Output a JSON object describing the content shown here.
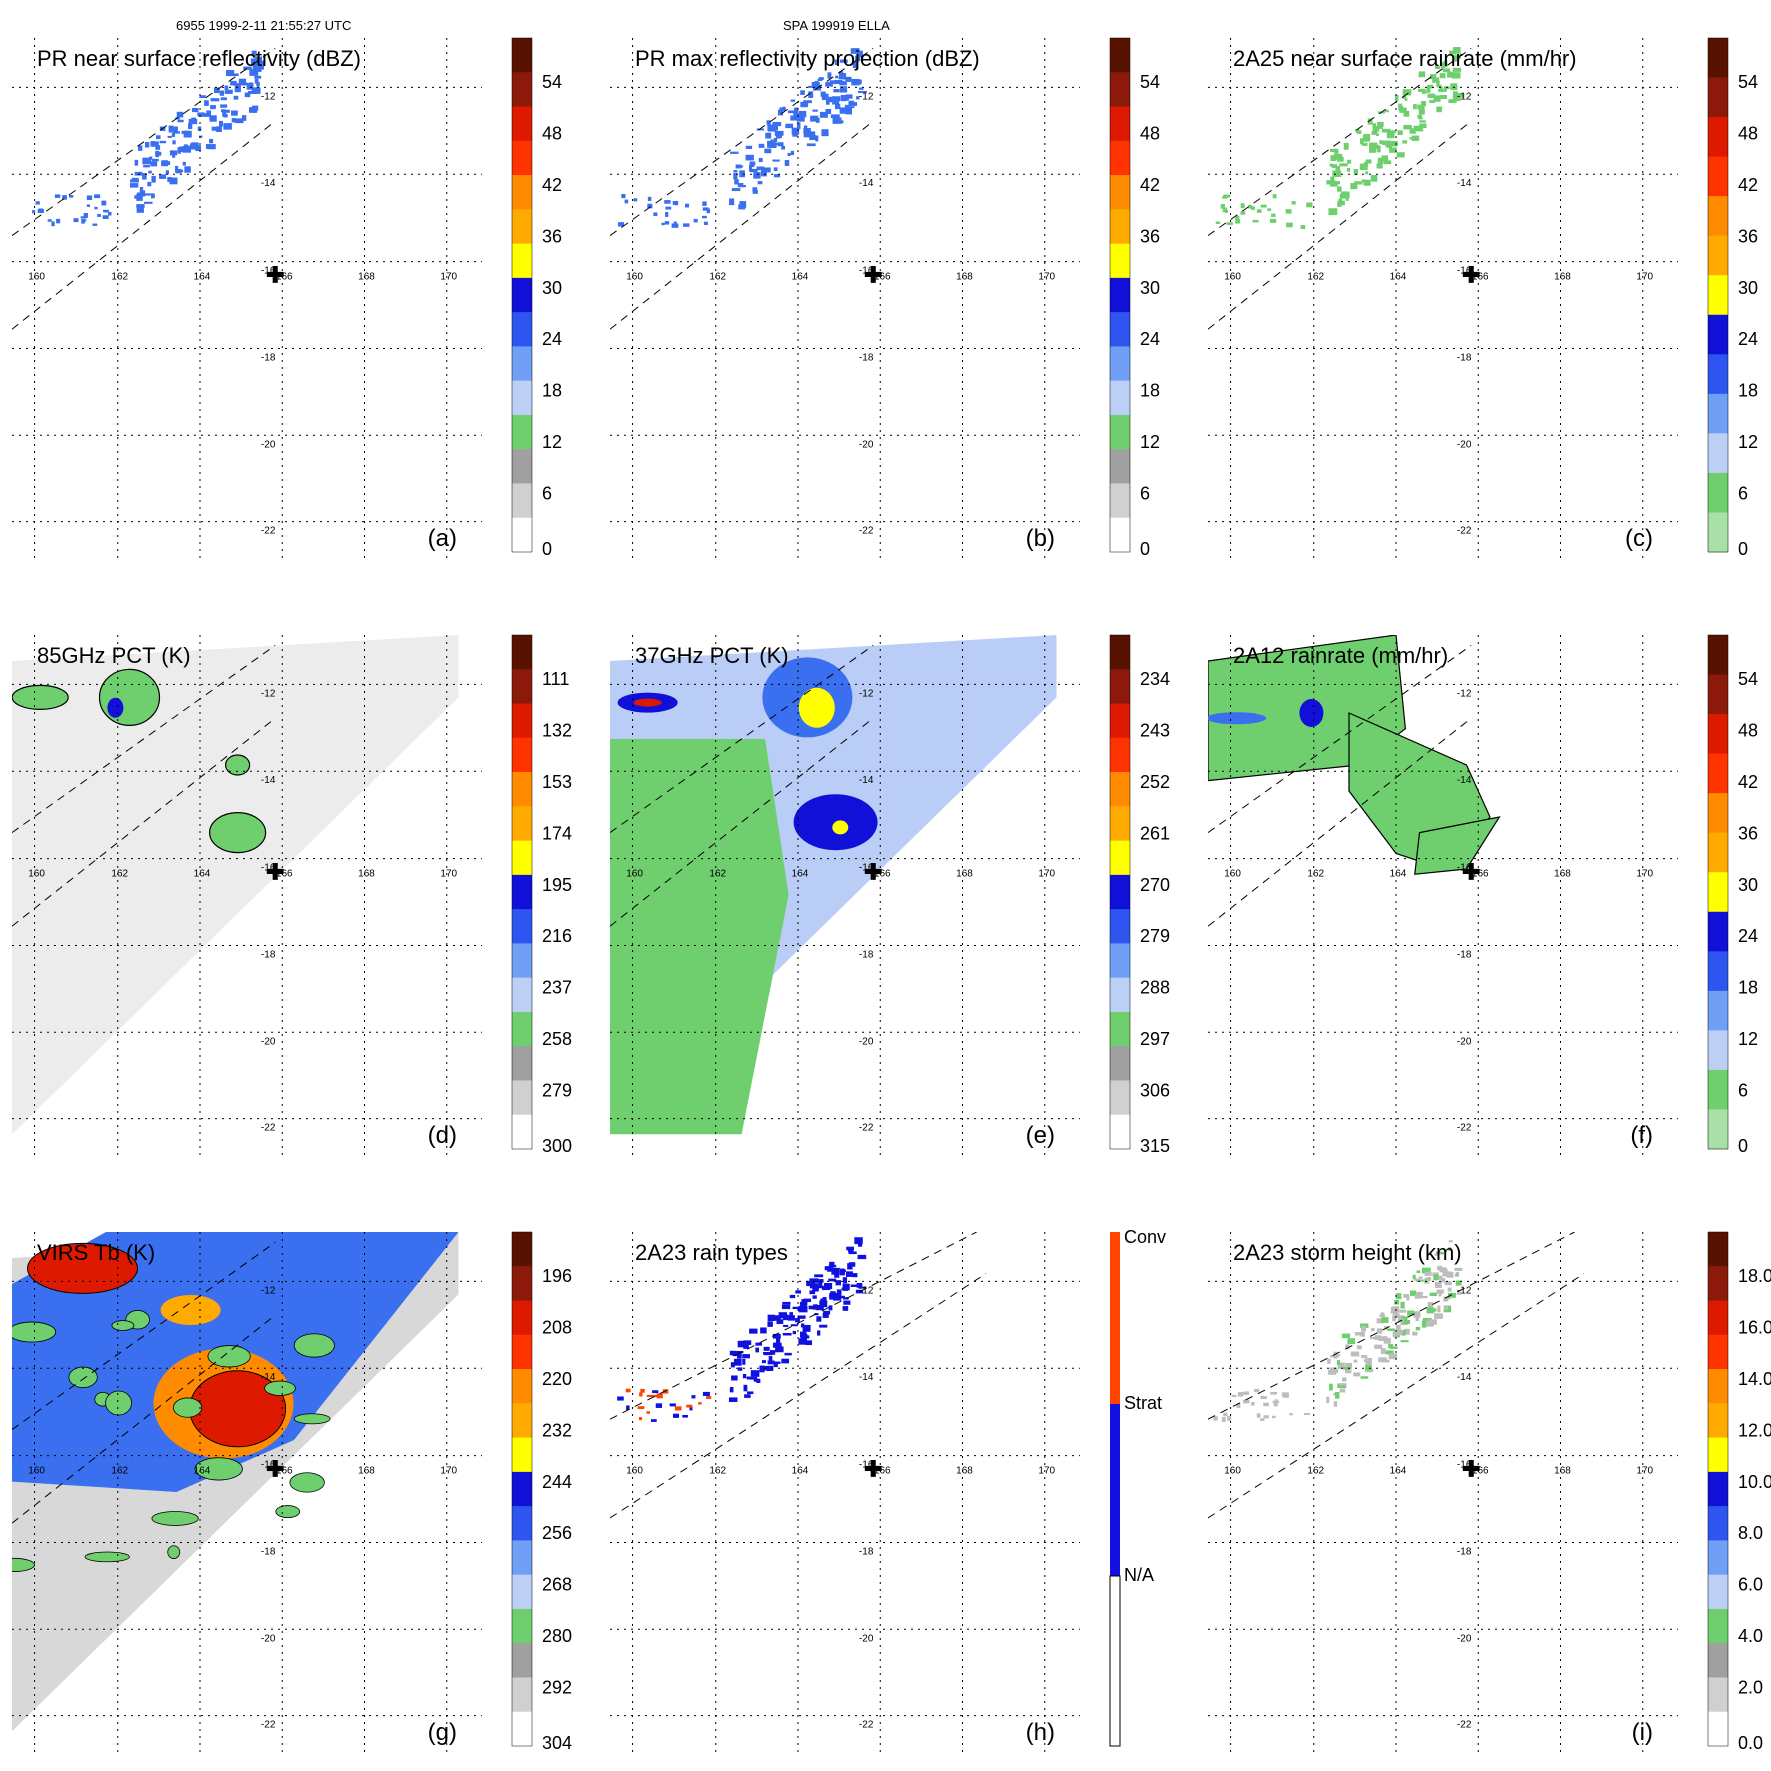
{
  "header": {
    "left": "6955 1999-2-11 21:55:27 UTC",
    "center": "SPA 199919 ELLA"
  },
  "map_axes": {
    "lon_ticks": [
      "160",
      "162",
      "164",
      "166",
      "168",
      "170"
    ],
    "lat_ticks": [
      "-12",
      "-14",
      "-16",
      "-18",
      "-20",
      "-22"
    ],
    "storm_marker": "plus-icon"
  },
  "colors": {
    "green": "#6fcf6f",
    "lightblue": "#bcd0f5",
    "blue": "#3a6ff0",
    "darkblue": "#1010d8",
    "yellow": "#ffff00",
    "orange": "#ff8c00",
    "red": "#dd1a00",
    "darkred": "#5a1200",
    "gray": "#bdbdbd",
    "conv": "#ff4400",
    "strat": "#1010e0"
  },
  "panels": [
    {
      "id": "a",
      "title": "PR near surface reflectivity (dBZ)",
      "label": "(a)",
      "colorbar": {
        "labels": [
          "54",
          "48",
          "42",
          "36",
          "30",
          "24",
          "18",
          "12",
          "6",
          "0"
        ]
      }
    },
    {
      "id": "b",
      "title": "PR max reflectivity projection (dBZ)",
      "label": "(b)",
      "colorbar": {
        "labels": [
          "54",
          "48",
          "42",
          "36",
          "30",
          "24",
          "18",
          "12",
          "6",
          "0"
        ]
      }
    },
    {
      "id": "c",
      "title": "2A25 near surface rainrate (mm/hr)",
      "label": "(c)",
      "colorbar": {
        "labels": [
          "54",
          "48",
          "42",
          "36",
          "30",
          "24",
          "18",
          "12",
          "6",
          "0"
        ]
      }
    },
    {
      "id": "d",
      "title": "85GHz PCT (K)",
      "label": "(d)",
      "colorbar": {
        "labels": [
          "111",
          "132",
          "153",
          "174",
          "195",
          "216",
          "237",
          "258",
          "279",
          "300"
        ]
      }
    },
    {
      "id": "e",
      "title": "37GHz PCT (K)",
      "label": "(e)",
      "colorbar": {
        "labels": [
          "234",
          "243",
          "252",
          "261",
          "270",
          "279",
          "288",
          "297",
          "306",
          "315"
        ]
      }
    },
    {
      "id": "f",
      "title": "2A12 rainrate (mm/hr)",
      "label": "(f)",
      "colorbar": {
        "labels": [
          "54",
          "48",
          "42",
          "36",
          "30",
          "24",
          "18",
          "12",
          "6",
          "0"
        ]
      }
    },
    {
      "id": "g",
      "title": "VIRS Tb (K)",
      "label": "(g)",
      "colorbar": {
        "labels": [
          "196",
          "208",
          "220",
          "232",
          "244",
          "256",
          "268",
          "280",
          "292",
          "304"
        ]
      }
    },
    {
      "id": "h",
      "title": "2A23 rain types",
      "label": "(h)",
      "colorbar": {
        "labels": [
          "Conv",
          "Strat",
          "N/A"
        ]
      }
    },
    {
      "id": "i",
      "title": "2A23 storm height (km)",
      "label": "(i)",
      "colorbar": {
        "labels": [
          "18.0",
          "16.0",
          "14.0",
          "12.0",
          "10.0",
          "8.0",
          "6.0",
          "4.0",
          "2.0",
          "0.0"
        ]
      }
    }
  ]
}
